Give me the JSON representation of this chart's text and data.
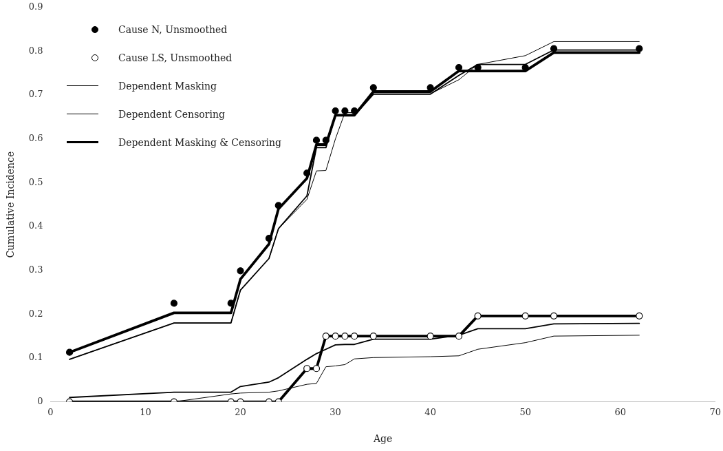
{
  "chart_data": {
    "type": "line",
    "xlabel": "Age",
    "ylabel": "Cumulative Incidence",
    "x": [
      2,
      13,
      19,
      20,
      23,
      24,
      27,
      28,
      29,
      30,
      31,
      32,
      34,
      40,
      43,
      45,
      50,
      53,
      62
    ],
    "xlim": [
      0,
      70
    ],
    "xticks": [
      0,
      10,
      20,
      30,
      40,
      50,
      60,
      70
    ],
    "ylim": [
      0,
      0.9
    ],
    "yticks": [
      0,
      0.1,
      0.2,
      0.3,
      0.4,
      0.5,
      0.6,
      0.7,
      0.8,
      0.9
    ],
    "grid": false,
    "legend": "top left",
    "line_style": "solid",
    "series": [
      {
        "name": "Cause N, Unsmoothed",
        "type": "scatter",
        "marker": "circle",
        "color": "#000000",
        "values": [
          0.113,
          0.225,
          0.225,
          0.299,
          0.373,
          0.448,
          0.522,
          0.597,
          0.597,
          0.664,
          0.664,
          0.664,
          0.717,
          0.717,
          0.763,
          0.763,
          0.763,
          0.806,
          0.806
        ]
      },
      {
        "name": "Cause LS, Unsmoothed",
        "type": "scatter",
        "marker": "circle",
        "color": "#ffffff",
        "values": [
          0,
          0,
          0,
          0,
          0,
          0,
          0.076,
          0.076,
          0.15,
          0.15,
          0.15,
          0.15,
          0.15,
          0.15,
          0.15,
          0.196,
          0.196,
          0.196,
          0.196
        ]
      },
      {
        "name": "Dependent Masking",
        "type": "line",
        "color": "#000000",
        "values": [
          0.097,
          0.18,
          0.18,
          0.255,
          0.327,
          0.395,
          0.462,
          0.527,
          0.528,
          0.6,
          0.66,
          0.66,
          0.703,
          0.703,
          0.735,
          0.77,
          0.79,
          0.822,
          0.822
        ]
      },
      {
        "name": "Dependent Censoring",
        "type": "line",
        "color": "#000000",
        "values": [
          0.097,
          0.18,
          0.18,
          0.255,
          0.327,
          0.395,
          0.47,
          0.58,
          0.58,
          0.653,
          0.653,
          0.653,
          0.702,
          0.702,
          0.745,
          0.77,
          0.77,
          0.803,
          0.803
        ]
      },
      {
        "name": "Dependent Masking & Censoring",
        "type": "line",
        "color": "#000000",
        "values": [
          0.113,
          0.203,
          0.203,
          0.28,
          0.36,
          0.44,
          0.51,
          0.587,
          0.587,
          0.654,
          0.654,
          0.654,
          0.708,
          0.708,
          0.755,
          0.755,
          0.755,
          0.797,
          0.797
        ]
      },
      {
        "type": "line",
        "color": "#000000",
        "values": [
          0,
          0,
          0.018,
          0.02,
          0.022,
          0.025,
          0.04,
          0.042,
          0.08,
          0.082,
          0.085,
          0.098,
          0.101,
          0.103,
          0.105,
          0.12,
          0.135,
          0.15,
          0.152
        ]
      },
      {
        "type": "line",
        "color": "#000000",
        "values": [
          0.01,
          0.022,
          0.022,
          0.035,
          0.045,
          0.055,
          0.097,
          0.11,
          0.12,
          0.13,
          0.131,
          0.131,
          0.143,
          0.143,
          0.152,
          0.167,
          0.167,
          0.178,
          0.179
        ]
      },
      {
        "type": "line",
        "color": "#000000",
        "values": [
          0,
          0,
          0,
          0,
          0,
          0,
          0.076,
          0.076,
          0.15,
          0.15,
          0.15,
          0.15,
          0.15,
          0.15,
          0.15,
          0.196,
          0.196,
          0.196,
          0.196
        ]
      }
    ]
  }
}
